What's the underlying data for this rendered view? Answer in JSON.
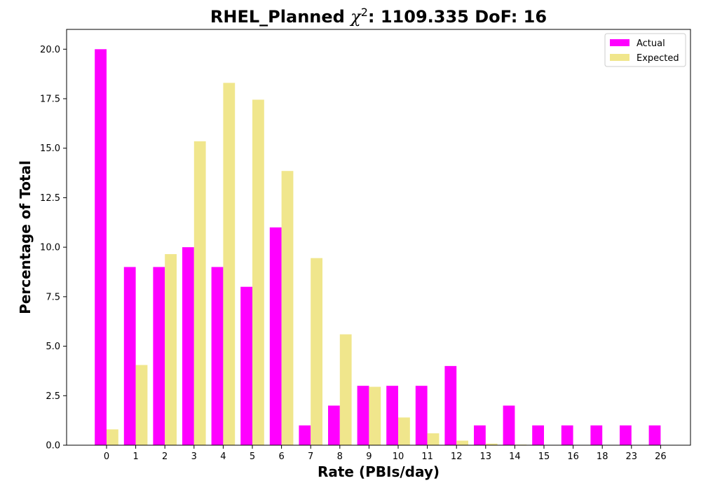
{
  "chart_data": {
    "type": "bar",
    "title_prefix": "RHEL_Planned ",
    "title_chi": "χ",
    "title_sup": "2",
    "title_suffix": ": 1109.335 DoF: 16",
    "xlabel": "Rate (PBIs/day)",
    "ylabel": "Percentage of Total",
    "categories": [
      "0",
      "1",
      "2",
      "3",
      "4",
      "5",
      "6",
      "7",
      "8",
      "9",
      "10",
      "11",
      "12",
      "13",
      "14",
      "15",
      "16",
      "18",
      "23",
      "26"
    ],
    "series": [
      {
        "name": "Actual",
        "color": "#ff00ff",
        "values": [
          20,
          9,
          9,
          10,
          9,
          8,
          11,
          1,
          2,
          3,
          3,
          3,
          4,
          1,
          2,
          1,
          1,
          1,
          1,
          1
        ]
      },
      {
        "name": "Expected",
        "color": "#f0e68c",
        "values": [
          0.8,
          4.05,
          9.65,
          15.35,
          18.3,
          17.45,
          13.85,
          9.45,
          5.6,
          2.95,
          1.4,
          0.6,
          0.23,
          0.08,
          0.03,
          0.01,
          0.0,
          0.0,
          0.0,
          0.0
        ]
      }
    ],
    "ylim": [
      0,
      21
    ],
    "yticks": [
      "0.0",
      "2.5",
      "5.0",
      "7.5",
      "10.0",
      "12.5",
      "15.0",
      "17.5",
      "20.0"
    ],
    "grid": false,
    "legend_position": "top-right"
  }
}
